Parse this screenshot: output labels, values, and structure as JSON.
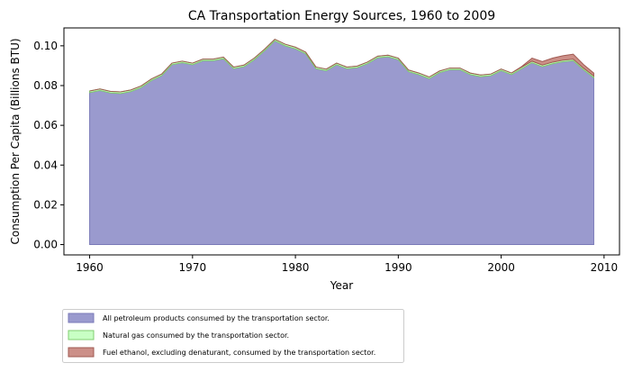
{
  "chart_data": {
    "type": "area",
    "stacked": true,
    "title": "CA Transportation Energy Sources, 1960 to 2009",
    "xlabel": "Year",
    "ylabel": "Consumption Per Capita (Billions BTU)",
    "xlim": [
      1957.5,
      2011.5
    ],
    "ylim": [
      -0.0052,
      0.109
    ],
    "xticks": [
      1960,
      1970,
      1980,
      1990,
      2000,
      2010
    ],
    "yticks": [
      0.0,
      0.02,
      0.04,
      0.06,
      0.08,
      0.1
    ],
    "ytick_labels": [
      "0.00",
      "0.02",
      "0.04",
      "0.06",
      "0.08",
      "0.10"
    ],
    "legend_position": "below-left",
    "x": [
      1960,
      1961,
      1962,
      1963,
      1964,
      1965,
      1966,
      1967,
      1968,
      1969,
      1970,
      1971,
      1972,
      1973,
      1974,
      1975,
      1976,
      1977,
      1978,
      1979,
      1980,
      1981,
      1982,
      1983,
      1984,
      1985,
      1986,
      1987,
      1988,
      1989,
      1990,
      1991,
      1992,
      1993,
      1994,
      1995,
      1996,
      1997,
      1998,
      1999,
      2000,
      2001,
      2002,
      2003,
      2004,
      2005,
      2006,
      2007,
      2008,
      2009
    ],
    "series": [
      {
        "name": "All petroleum products consumed by the transportation sector.",
        "color": "#9a9ace",
        "edge": "#7a7ab8",
        "values": [
          0.0765,
          0.0775,
          0.0763,
          0.076,
          0.077,
          0.079,
          0.0825,
          0.085,
          0.0905,
          0.0915,
          0.0905,
          0.0925,
          0.0925,
          0.0935,
          0.0885,
          0.0895,
          0.093,
          0.0975,
          0.1025,
          0.1,
          0.0985,
          0.096,
          0.0885,
          0.0875,
          0.0905,
          0.0885,
          0.089,
          0.091,
          0.094,
          0.0945,
          0.093,
          0.087,
          0.0855,
          0.0835,
          0.0865,
          0.088,
          0.088,
          0.0855,
          0.0845,
          0.085,
          0.0875,
          0.0855,
          0.0885,
          0.0915,
          0.0895,
          0.091,
          0.092,
          0.0925,
          0.088,
          0.084
        ]
      },
      {
        "name": "Natural gas consumed by the transportation sector.",
        "color": "#c8ffc4",
        "edge": "#80cc70",
        "values": [
          0.0008,
          0.0008,
          0.0008,
          0.0008,
          0.0008,
          0.0008,
          0.0008,
          0.0008,
          0.0008,
          0.0008,
          0.0008,
          0.0008,
          0.0008,
          0.0008,
          0.0008,
          0.0008,
          0.0008,
          0.0008,
          0.0008,
          0.0008,
          0.0008,
          0.0008,
          0.0008,
          0.0008,
          0.0008,
          0.0008,
          0.0008,
          0.0008,
          0.0008,
          0.0008,
          0.0008,
          0.0008,
          0.0008,
          0.0008,
          0.0008,
          0.0008,
          0.0008,
          0.0008,
          0.0008,
          0.0008,
          0.0008,
          0.0008,
          0.0008,
          0.0008,
          0.0008,
          0.0008,
          0.0008,
          0.0008,
          0.0008,
          0.0008
        ]
      },
      {
        "name": "Fuel ethanol, excluding denaturant, consumed by the transportation sector.",
        "color": "#cc8f88",
        "edge": "#a05a52",
        "values": [
          0,
          0,
          0,
          0,
          0,
          0,
          0,
          0,
          0,
          0,
          0,
          0,
          0,
          0,
          0,
          0,
          0,
          0,
          0,
          0,
          0,
          0,
          0,
          0,
          0,
          0,
          0,
          0,
          0,
          0,
          0,
          0,
          0,
          0,
          0,
          0,
          0,
          0,
          0,
          0,
          0,
          0,
          0.0003,
          0.0015,
          0.0018,
          0.002,
          0.0022,
          0.0025,
          0.0018,
          0.0015
        ]
      }
    ]
  }
}
